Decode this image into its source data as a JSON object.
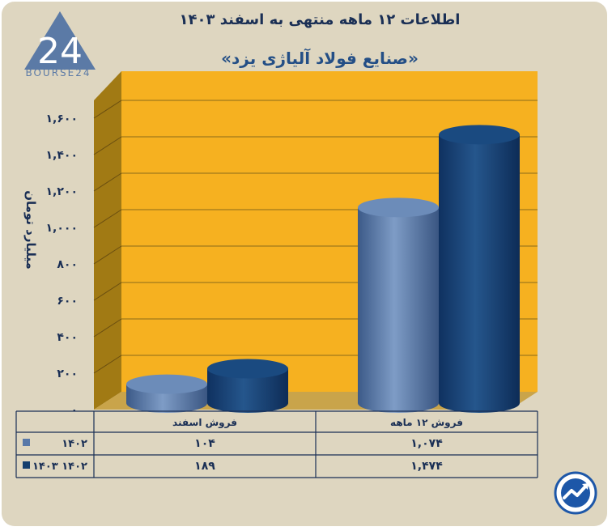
{
  "logo": {
    "text": "BOURSE24",
    "mark": "24"
  },
  "chart_data": {
    "type": "bar",
    "title": "اطلاعات ۱۲ ماهه منتهی به اسفند ۱۴۰۳",
    "subtitle": "«صنایع فولاد آلیاژی یزد»",
    "ylabel": "میلیارد تومان",
    "ylim": [
      0,
      1600
    ],
    "yticks": [
      0,
      200,
      400,
      600,
      800,
      1000,
      1200,
      1400,
      1600
    ],
    "ytick_labels": [
      "۰",
      "۲۰۰",
      "۴۰۰",
      "۶۰۰",
      "۸۰۰",
      "۱,۰۰۰",
      "۱,۲۰۰",
      "۱,۴۰۰",
      "۱,۶۰۰"
    ],
    "categories": [
      "فروش اسفند",
      "فروش ۱۲ ماهه"
    ],
    "series": [
      {
        "name": "۱۴۰۲",
        "values": [
          104,
          1074
        ],
        "labels": [
          "۱۰۴",
          "۱,۰۷۴"
        ],
        "color": "#5878a8"
      },
      {
        "name": "۱۴۰۳ ۱۴۰۲",
        "values": [
          189,
          1474
        ],
        "labels": [
          "۱۸۹",
          "۱,۴۷۴"
        ],
        "color": "#153f6e"
      }
    ],
    "grid": true,
    "legend": "table-bottom"
  },
  "colors": {
    "plot_bg": "#f6b120",
    "wall": "#a17a14",
    "card": "#ded6c0",
    "text": "#1a2f55"
  },
  "badge_icon": "trend-arrow-icon"
}
